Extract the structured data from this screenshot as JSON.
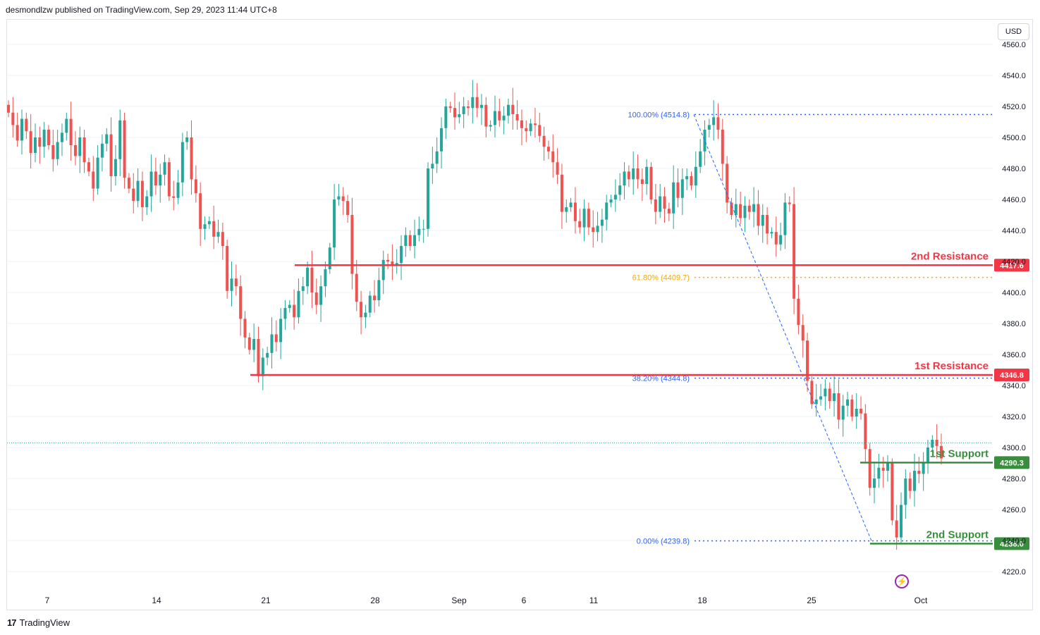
{
  "header": {
    "text": "desmondlzw published on TradingView.com, Sep 29, 2023 11:44 UTC+8"
  },
  "currency": "USD",
  "footer": {
    "brand": "TradingView",
    "logo_mark": "17"
  },
  "colors": {
    "up": "#26a69a",
    "down": "#ef5350",
    "resistance": "#f23645",
    "support": "#388e3c",
    "fib_blue": "#2962ff",
    "fib_gold": "#f2a900",
    "grid": "#f0f3fa",
    "text_muted": "#131722"
  },
  "chart_data": {
    "type": "candlestick",
    "y_axis": {
      "ticks": [
        4220,
        4240,
        4260,
        4280,
        4300,
        4320,
        4340,
        4360,
        4380,
        4400,
        4420,
        4440,
        4460,
        4480,
        4500,
        4520,
        4540,
        4560
      ],
      "ylim": [
        4214,
        4565
      ],
      "side": "right"
    },
    "x_axis": {
      "tick_labels": [
        "7",
        "14",
        "21",
        "28",
        "Sep",
        "6",
        "11",
        "18",
        "25",
        "Oct"
      ]
    },
    "current_price": 4303,
    "levels": [
      {
        "label": "2nd Resistance",
        "value": 4417.6,
        "badge": "4417.6",
        "kind": "resistance"
      },
      {
        "label": "1st Resistance",
        "value": 4346.8,
        "badge": "4346.8",
        "kind": "resistance"
      },
      {
        "label": "1st Support",
        "value": 4290.3,
        "badge": "4290.3",
        "kind": "support"
      },
      {
        "label": "2nd Support",
        "value": 4238.0,
        "badge": "4238.0",
        "kind": "support"
      }
    ],
    "fibonacci": [
      {
        "label": "100.00% (4514.8)",
        "value": 4514.8
      },
      {
        "label": "61.80% (4409.7)",
        "value": 4409.7
      },
      {
        "label": "38.20% (4344.8)",
        "value": 4344.8
      },
      {
        "label": "0.00% (4239.8)",
        "value": 4239.8
      }
    ],
    "trend_line": {
      "from": 4514.8,
      "to": 4239.8
    },
    "closes": [
      4516,
      4508,
      4498,
      4512,
      4504,
      4490,
      4500,
      4494,
      4505,
      4495,
      4486,
      4497,
      4503,
      4512,
      4495,
      4488,
      4500,
      4484,
      4478,
      4467,
      4487,
      4496,
      4502,
      4475,
      4486,
      4511,
      4474,
      4467,
      4459,
      4472,
      4455,
      4462,
      4478,
      4469,
      4476,
      4484,
      4462,
      4461,
      4471,
      4497,
      4500,
      4473,
      4464,
      4441,
      4444,
      4446,
      4436,
      4439,
      4430,
      4401,
      4409,
      4404,
      4383,
      4371,
      4363,
      4370,
      4346,
      4358,
      4361,
      4373,
      4368,
      4383,
      4390,
      4392,
      4384,
      4401,
      4404,
      4416,
      4400,
      4392,
      4404,
      4415,
      4429,
      4460,
      4462,
      4459,
      4450,
      4412,
      4394,
      4384,
      4387,
      4398,
      4395,
      4408,
      4421,
      4420,
      4418,
      4419,
      4430,
      4437,
      4430,
      4437,
      4441,
      4441,
      4480,
      4483,
      4491,
      4506,
      4520,
      4519,
      4513,
      4515,
      4520,
      4519,
      4526,
      4519,
      4521,
      4507,
      4508,
      4517,
      4511,
      4514,
      4521,
      4515,
      4511,
      4506,
      4504,
      4509,
      4508,
      4501,
      4494,
      4491,
      4484,
      4476,
      4452,
      4455,
      4458,
      4446,
      4442,
      4454,
      4442,
      4439,
      4443,
      4447,
      4458,
      4460,
      4463,
      4469,
      4478,
      4473,
      4480,
      4473,
      4470,
      4481,
      4460,
      4452,
      4462,
      4454,
      4451,
      4471,
      4461,
      4473,
      4475,
      4469,
      4481,
      4491,
      4505,
      4508,
      4513,
      4505,
      4483,
      4458,
      4450,
      4457,
      4448,
      4456,
      4452,
      4457,
      4443,
      4450,
      4438,
      4439,
      4431,
      4437,
      4458,
      4457,
      4396,
      4379,
      4369,
      4343,
      4328,
      4331,
      4333,
      4338,
      4330,
      4335,
      4318,
      4327,
      4331,
      4320,
      4325,
      4322,
      4299,
      4274,
      4280,
      4287,
      4285,
      4290,
      4253,
      4242,
      4263,
      4280,
      4272,
      4285,
      4283,
      4290,
      4300,
      4305,
      4301,
      4293
    ]
  }
}
